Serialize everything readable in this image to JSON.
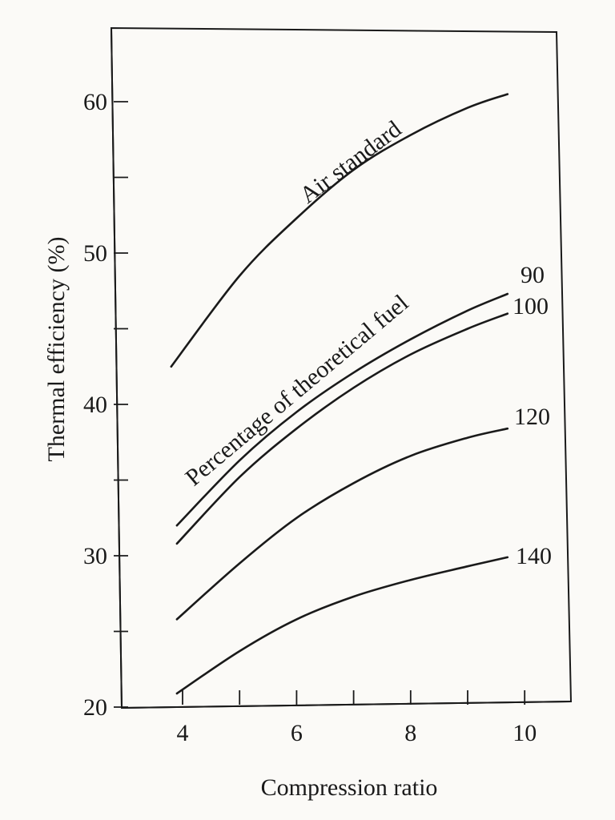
{
  "chart_data": {
    "type": "line",
    "title": "",
    "xlabel": "Compression ratio",
    "ylabel": "Thermal efficiency (%)",
    "xlim": [
      3,
      11
    ],
    "ylim": [
      20,
      65
    ],
    "x_ticks": [
      4,
      6,
      8,
      10
    ],
    "x_minor_ticks": [
      5,
      7,
      9
    ],
    "y_ticks": [
      20,
      30,
      40,
      50,
      60
    ],
    "y_minor_ticks": [
      25,
      35,
      45,
      55
    ],
    "grid": false,
    "legend": "none",
    "annotations": {
      "air_standard": "Air standard",
      "fuel_percentage": "Percentage of theoretical fuel"
    },
    "series": [
      {
        "name": "Air standard",
        "x": [
          3.8,
          5,
          6,
          7,
          8,
          9,
          9.7
        ],
        "y": [
          42.5,
          48.5,
          52.3,
          55.5,
          57.8,
          59.6,
          60.5
        ]
      },
      {
        "name": "90",
        "x": [
          3.9,
          5,
          6,
          7,
          8,
          9,
          9.7
        ],
        "y": [
          32.0,
          36.3,
          39.5,
          42.1,
          44.3,
          46.2,
          47.3
        ]
      },
      {
        "name": "100",
        "x": [
          3.9,
          5,
          6,
          7,
          8,
          9,
          9.7
        ],
        "y": [
          30.8,
          35.2,
          38.4,
          41.1,
          43.3,
          45.0,
          46.0
        ]
      },
      {
        "name": "120",
        "x": [
          3.9,
          5,
          6,
          7,
          8,
          9,
          9.7
        ],
        "y": [
          25.8,
          29.5,
          32.5,
          34.8,
          36.6,
          37.8,
          38.4
        ]
      },
      {
        "name": "140",
        "x": [
          3.9,
          5,
          6,
          7,
          8,
          9,
          9.7
        ],
        "y": [
          20.9,
          23.7,
          25.8,
          27.3,
          28.4,
          29.3,
          29.9
        ]
      }
    ],
    "series_labels": [
      "90",
      "100",
      "120",
      "140"
    ]
  }
}
